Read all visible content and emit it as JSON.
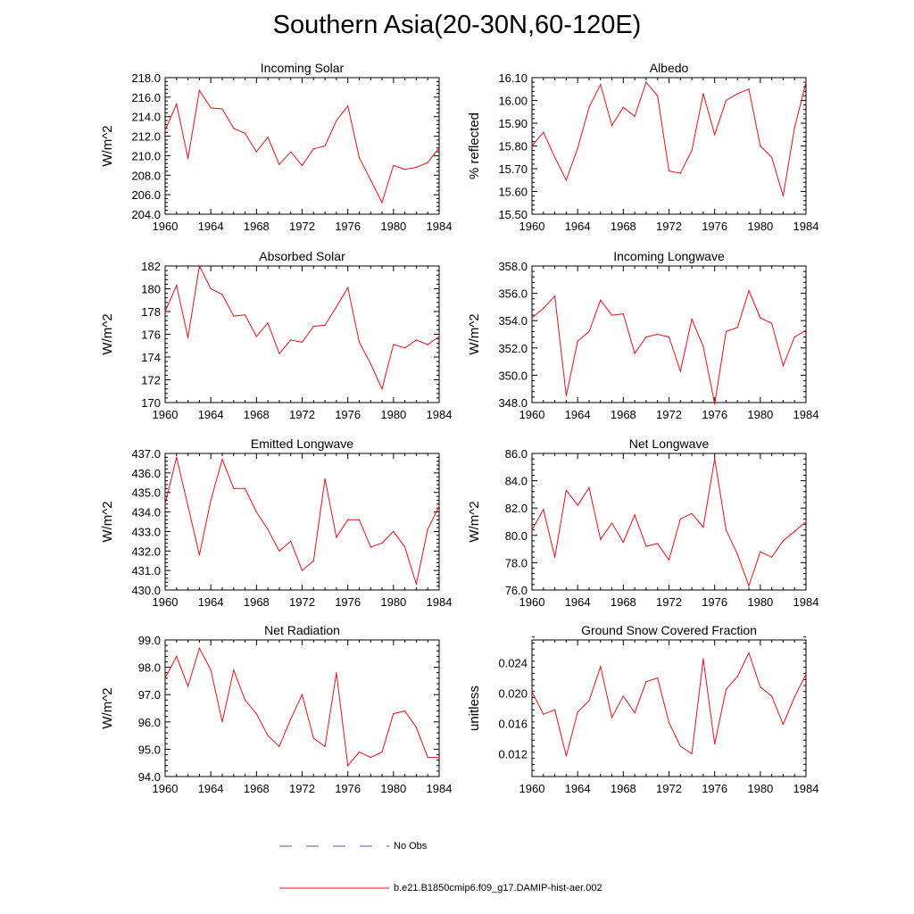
{
  "title": "Southern Asia(20-30N,60-120E)",
  "colors": {
    "model_line": "#e8101a",
    "obs_line": "#4a5ec8",
    "axis": "#000000"
  },
  "legend": {
    "obs_label": "No Obs",
    "model_label": "b.e21.B1850cmip6.f09_g17.DAMIP-hist-aer.002"
  },
  "chart_data": [
    {
      "type": "line",
      "title": "Incoming Solar",
      "ylabel": "W/m^2",
      "xlim": [
        1960,
        1984
      ],
      "ylim": [
        204.0,
        218.0
      ],
      "xticks": [
        1960,
        1964,
        1968,
        1972,
        1976,
        1980,
        1984
      ],
      "yticks": [
        204.0,
        206.0,
        208.0,
        210.0,
        212.0,
        214.0,
        216.0,
        218.0
      ],
      "ytick_decimals": 1,
      "x": [
        1960,
        1961,
        1962,
        1963,
        1964,
        1965,
        1966,
        1967,
        1968,
        1969,
        1970,
        1971,
        1972,
        1973,
        1974,
        1975,
        1976,
        1977,
        1978,
        1979,
        1980,
        1981,
        1982,
        1983,
        1984
      ],
      "series": [
        {
          "values": [
            212.6,
            215.3,
            209.7,
            216.7,
            214.9,
            214.8,
            212.8,
            212.3,
            210.4,
            211.9,
            209.1,
            210.4,
            209.0,
            210.7,
            211.0,
            213.6,
            215.1,
            209.8,
            207.5,
            205.2,
            209.0,
            208.6,
            208.8,
            209.3,
            210.8
          ]
        }
      ]
    },
    {
      "type": "line",
      "title": "Albedo",
      "ylabel": "% reflected",
      "xlim": [
        1960,
        1984
      ],
      "ylim": [
        15.5,
        16.1
      ],
      "xticks": [
        1960,
        1964,
        1968,
        1972,
        1976,
        1980,
        1984
      ],
      "yticks": [
        15.5,
        15.6,
        15.7,
        15.8,
        15.9,
        16.0,
        16.1
      ],
      "ytick_decimals": 2,
      "x": [
        1960,
        1961,
        1962,
        1963,
        1964,
        1965,
        1966,
        1967,
        1968,
        1969,
        1970,
        1971,
        1972,
        1973,
        1974,
        1975,
        1976,
        1977,
        1978,
        1979,
        1980,
        1981,
        1982,
        1983,
        1984
      ],
      "series": [
        {
          "values": [
            15.8,
            15.86,
            15.75,
            15.65,
            15.79,
            15.97,
            16.07,
            15.89,
            15.97,
            15.93,
            16.08,
            16.02,
            15.69,
            15.68,
            15.78,
            16.03,
            15.85,
            16.0,
            16.03,
            16.05,
            15.8,
            15.75,
            15.58,
            15.88,
            16.08
          ]
        }
      ]
    },
    {
      "type": "line",
      "title": "Absorbed Solar",
      "ylabel": "W/m^2",
      "xlim": [
        1960,
        1984
      ],
      "ylim": [
        170,
        182
      ],
      "xticks": [
        1960,
        1964,
        1968,
        1972,
        1976,
        1980,
        1984
      ],
      "yticks": [
        170,
        172,
        174,
        176,
        178,
        180,
        182
      ],
      "ytick_decimals": 0,
      "x": [
        1960,
        1961,
        1962,
        1963,
        1964,
        1965,
        1966,
        1967,
        1968,
        1969,
        1970,
        1971,
        1972,
        1973,
        1974,
        1975,
        1976,
        1977,
        1978,
        1979,
        1980,
        1981,
        1982,
        1983,
        1984
      ],
      "series": [
        {
          "values": [
            178.0,
            180.3,
            175.7,
            182.0,
            180.0,
            179.5,
            177.6,
            177.7,
            175.8,
            177.0,
            174.3,
            175.5,
            175.3,
            176.7,
            176.8,
            178.4,
            180.1,
            175.3,
            173.4,
            171.2,
            175.1,
            174.8,
            175.5,
            175.1,
            175.8
          ]
        }
      ]
    },
    {
      "type": "line",
      "title": "Incoming Longwave",
      "ylabel": "W/m^2",
      "xlim": [
        1960,
        1984
      ],
      "ylim": [
        348.0,
        358.0
      ],
      "xticks": [
        1960,
        1964,
        1968,
        1972,
        1976,
        1980,
        1984
      ],
      "yticks": [
        348.0,
        350.0,
        352.0,
        354.0,
        356.0,
        358.0
      ],
      "ytick_decimals": 1,
      "x": [
        1960,
        1961,
        1962,
        1963,
        1964,
        1965,
        1966,
        1967,
        1968,
        1969,
        1970,
        1971,
        1972,
        1973,
        1974,
        1975,
        1976,
        1977,
        1978,
        1979,
        1980,
        1981,
        1982,
        1983,
        1984
      ],
      "series": [
        {
          "values": [
            354.2,
            354.9,
            355.8,
            348.5,
            352.5,
            353.2,
            355.5,
            354.4,
            354.5,
            351.6,
            352.8,
            353.0,
            352.8,
            350.3,
            354.1,
            352.1,
            347.9,
            353.2,
            353.5,
            356.2,
            354.2,
            353.8,
            350.7,
            352.8,
            353.3
          ]
        }
      ]
    },
    {
      "type": "line",
      "title": "Emitted Longwave",
      "ylabel": "W/m^2",
      "xlim": [
        1960,
        1984
      ],
      "ylim": [
        430.0,
        437.0
      ],
      "xticks": [
        1960,
        1964,
        1968,
        1972,
        1976,
        1980,
        1984
      ],
      "yticks": [
        430.0,
        431.0,
        432.0,
        433.0,
        434.0,
        435.0,
        436.0,
        437.0
      ],
      "ytick_decimals": 1,
      "x": [
        1960,
        1961,
        1962,
        1963,
        1964,
        1965,
        1966,
        1967,
        1968,
        1969,
        1970,
        1971,
        1972,
        1973,
        1974,
        1975,
        1976,
        1977,
        1978,
        1979,
        1980,
        1981,
        1982,
        1983,
        1984
      ],
      "series": [
        {
          "values": [
            434.4,
            436.8,
            434.3,
            431.8,
            434.6,
            436.7,
            435.2,
            435.2,
            434.0,
            433.1,
            432.0,
            432.5,
            431.0,
            431.5,
            435.7,
            432.7,
            433.6,
            433.6,
            432.2,
            432.4,
            433.0,
            432.2,
            430.3,
            433.1,
            434.3
          ]
        }
      ]
    },
    {
      "type": "line",
      "title": "Net Longwave",
      "ylabel": "W/m^2",
      "xlim": [
        1960,
        1984
      ],
      "ylim": [
        76.0,
        86.0
      ],
      "xticks": [
        1960,
        1964,
        1968,
        1972,
        1976,
        1980,
        1984
      ],
      "yticks": [
        76.0,
        78.0,
        80.0,
        82.0,
        84.0,
        86.0
      ],
      "ytick_decimals": 1,
      "x": [
        1960,
        1961,
        1962,
        1963,
        1964,
        1965,
        1966,
        1967,
        1968,
        1969,
        1970,
        1971,
        1972,
        1973,
        1974,
        1975,
        1976,
        1977,
        1978,
        1979,
        1980,
        1981,
        1982,
        1983,
        1984
      ],
      "series": [
        {
          "values": [
            80.4,
            81.9,
            78.4,
            83.3,
            82.2,
            83.5,
            79.7,
            80.9,
            79.5,
            81.5,
            79.2,
            79.4,
            78.2,
            81.2,
            81.6,
            80.6,
            85.6,
            80.4,
            78.6,
            76.3,
            78.8,
            78.4,
            79.6,
            80.3,
            81.0
          ]
        }
      ]
    },
    {
      "type": "line",
      "title": "Net Radiation",
      "ylabel": "W/m^2",
      "xlim": [
        1960,
        1984
      ],
      "ylim": [
        94.0,
        99.0
      ],
      "xticks": [
        1960,
        1964,
        1968,
        1972,
        1976,
        1980,
        1984
      ],
      "yticks": [
        94.0,
        95.0,
        96.0,
        97.0,
        98.0,
        99.0
      ],
      "ytick_decimals": 1,
      "x": [
        1960,
        1961,
        1962,
        1963,
        1964,
        1965,
        1966,
        1967,
        1968,
        1969,
        1970,
        1971,
        1972,
        1973,
        1974,
        1975,
        1976,
        1977,
        1978,
        1979,
        1980,
        1981,
        1982,
        1983,
        1984
      ],
      "series": [
        {
          "values": [
            97.6,
            98.4,
            97.3,
            98.7,
            97.9,
            96.0,
            97.9,
            96.8,
            96.3,
            95.5,
            95.1,
            96.1,
            97.0,
            95.4,
            95.1,
            97.8,
            94.4,
            94.9,
            94.7,
            94.9,
            96.3,
            96.4,
            95.8,
            94.7,
            94.7
          ]
        }
      ]
    },
    {
      "type": "line",
      "title": "Ground Snow Covered Fraction",
      "ylabel": "unitless",
      "xlim": [
        1960,
        1984
      ],
      "ylim": [
        0.009,
        0.027
      ],
      "xticks": [
        1960,
        1964,
        1968,
        1972,
        1976,
        1980,
        1984
      ],
      "yticks": [
        0.012,
        0.016,
        0.02,
        0.024
      ],
      "ytick_decimals": 3,
      "x": [
        1960,
        1961,
        1962,
        1963,
        1964,
        1965,
        1966,
        1967,
        1968,
        1969,
        1970,
        1971,
        1972,
        1973,
        1974,
        1975,
        1976,
        1977,
        1978,
        1979,
        1980,
        1981,
        1982,
        1983,
        1984
      ],
      "series": [
        {
          "values": [
            0.0202,
            0.0172,
            0.0178,
            0.0117,
            0.0175,
            0.019,
            0.0235,
            0.0168,
            0.0196,
            0.0174,
            0.0215,
            0.022,
            0.0161,
            0.013,
            0.012,
            0.0245,
            0.0133,
            0.0205,
            0.0222,
            0.0253,
            0.0208,
            0.0196,
            0.0159,
            0.0195,
            0.0225
          ]
        }
      ]
    }
  ]
}
